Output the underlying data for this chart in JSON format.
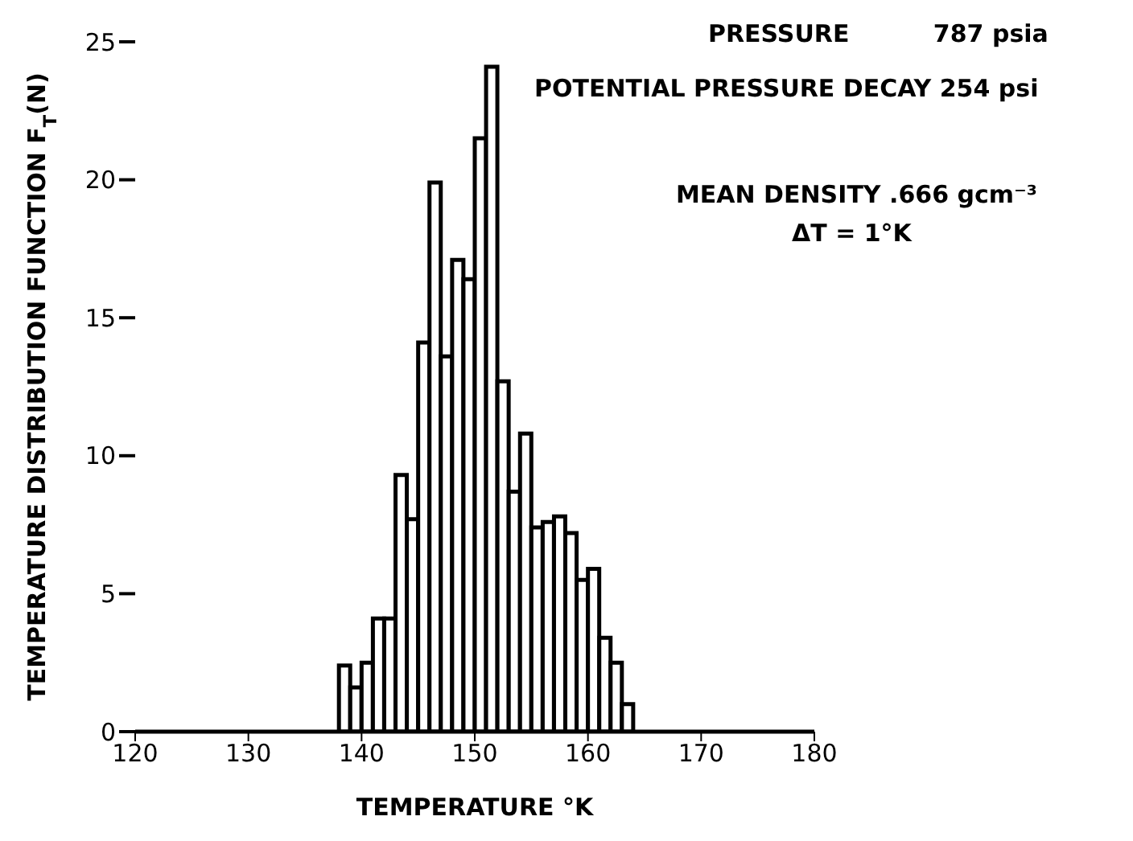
{
  "chart_data": {
    "type": "histogram",
    "xlabel": "TEMPERATURE °K",
    "ylabel": "TEMPERATURE DISTRIBUTION FUNCTION F$_{T}$(N)",
    "bins": [
      138,
      139,
      140,
      141,
      142,
      143,
      144,
      145,
      146,
      147,
      148,
      149,
      150,
      151,
      152,
      153,
      154,
      155,
      156,
      157,
      158,
      159,
      160,
      161,
      162,
      163,
      164
    ],
    "values": [
      2.4,
      1.6,
      2.5,
      4.1,
      4.1,
      9.3,
      7.7,
      14.1,
      19.9,
      13.6,
      17.1,
      16.4,
      21.5,
      24.1,
      12.7,
      8.7,
      10.8,
      7.4,
      7.6,
      7.8,
      7.2,
      5.5,
      5.9,
      3.4,
      2.5,
      1.0
    ],
    "color": "#000000",
    "xlim": [
      120,
      180
    ],
    "xticks": [
      120,
      130,
      140,
      150,
      160,
      170,
      180
    ],
    "ylim": [
      0,
      25
    ],
    "yticks": [
      0,
      5,
      10,
      15,
      20,
      25
    ],
    "grid": false,
    "legend": false,
    "annotations": [
      "PRESSURE          787 psia",
      "POTENTIAL PRESSURE DECAY 254 psi",
      "MEAN DENSITY .666 gcm⁻³",
      "ΔT = 1°K"
    ]
  }
}
